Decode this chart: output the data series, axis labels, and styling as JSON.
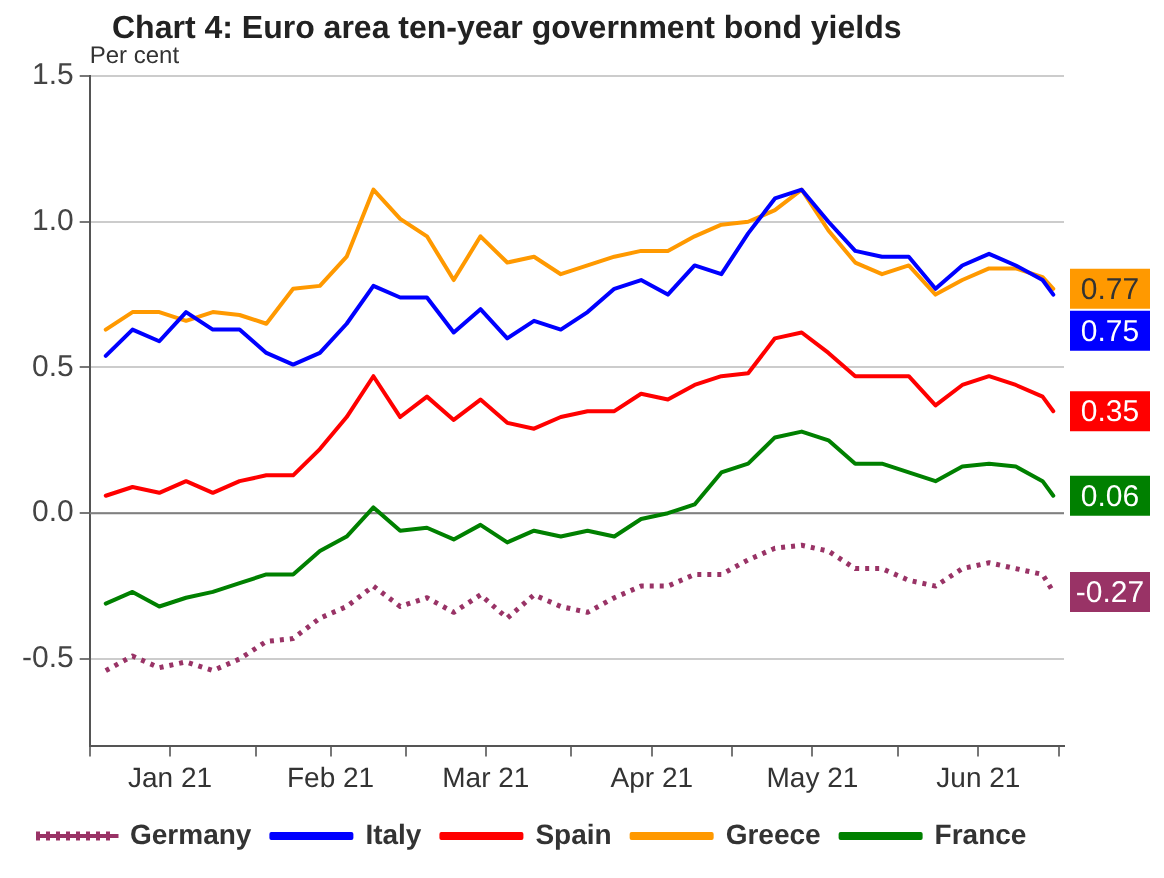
{
  "chart_data": {
    "type": "line",
    "title": "Chart 4: Euro area ten-year government bond yields",
    "ylabel": "Per cent",
    "x": [
      "2021-01-04",
      "2021-01-09",
      "2021-01-14",
      "2021-01-19",
      "2021-01-24",
      "2021-01-29",
      "2021-02-03",
      "2021-02-08",
      "2021-02-13",
      "2021-02-18",
      "2021-02-23",
      "2021-02-28",
      "2021-03-05",
      "2021-03-10",
      "2021-03-15",
      "2021-03-20",
      "2021-03-25",
      "2021-03-30",
      "2021-04-04",
      "2021-04-09",
      "2021-04-14",
      "2021-04-19",
      "2021-04-24",
      "2021-04-29",
      "2021-05-04",
      "2021-05-09",
      "2021-05-14",
      "2021-05-19",
      "2021-05-24",
      "2021-05-29",
      "2021-06-03",
      "2021-06-08",
      "2021-06-13",
      "2021-06-18",
      "2021-06-23",
      "2021-06-28",
      "2021-06-30"
    ],
    "series": [
      {
        "name": "Germany",
        "color": "#993366",
        "line_style": "dotted",
        "values": [
          -0.54,
          -0.49,
          -0.53,
          -0.51,
          -0.54,
          -0.5,
          -0.44,
          -0.43,
          -0.36,
          -0.32,
          -0.25,
          -0.32,
          -0.29,
          -0.34,
          -0.28,
          -0.36,
          -0.28,
          -0.32,
          -0.34,
          -0.29,
          -0.25,
          -0.25,
          -0.21,
          -0.21,
          -0.16,
          -0.12,
          -0.11,
          -0.13,
          -0.19,
          -0.19,
          -0.23,
          -0.25,
          -0.19,
          -0.17,
          -0.19,
          -0.21,
          -0.27
        ],
        "value_labels": [
          null,
          null,
          null,
          null,
          null,
          null,
          null,
          null,
          null,
          null,
          null,
          null,
          null,
          null,
          null,
          null,
          null,
          null,
          null,
          null,
          null,
          null,
          null,
          null,
          null,
          null,
          null,
          null,
          null,
          null,
          null,
          null,
          null,
          null,
          null,
          null,
          "-0.27"
        ]
      },
      {
        "name": "Italy",
        "color": "#0000ff",
        "values": [
          0.54,
          0.63,
          0.59,
          0.69,
          0.63,
          0.63,
          0.55,
          0.51,
          0.55,
          0.65,
          0.78,
          0.74,
          0.74,
          0.62,
          0.7,
          0.6,
          0.66,
          0.63,
          0.69,
          0.77,
          0.8,
          0.75,
          0.85,
          0.82,
          0.96,
          1.08,
          1.11,
          1.0,
          0.9,
          0.88,
          0.88,
          0.77,
          0.85,
          0.89,
          0.85,
          0.8,
          0.75
        ],
        "value_labels": [
          null,
          null,
          null,
          null,
          null,
          null,
          null,
          null,
          null,
          null,
          null,
          null,
          null,
          null,
          null,
          null,
          null,
          null,
          null,
          null,
          null,
          null,
          null,
          null,
          null,
          null,
          null,
          null,
          null,
          null,
          null,
          null,
          null,
          null,
          null,
          null,
          "0.75"
        ]
      },
      {
        "name": "Spain",
        "color": "#ff0000",
        "values": [
          0.06,
          0.09,
          0.07,
          0.11,
          0.07,
          0.11,
          0.13,
          0.13,
          0.22,
          0.33,
          0.47,
          0.33,
          0.4,
          0.32,
          0.39,
          0.31,
          0.29,
          0.33,
          0.35,
          0.35,
          0.41,
          0.39,
          0.44,
          0.47,
          0.48,
          0.6,
          0.62,
          0.55,
          0.47,
          0.47,
          0.47,
          0.37,
          0.44,
          0.47,
          0.44,
          0.4,
          0.35
        ],
        "value_labels": [
          null,
          null,
          null,
          null,
          null,
          null,
          null,
          null,
          null,
          null,
          null,
          null,
          null,
          null,
          null,
          null,
          null,
          null,
          null,
          null,
          null,
          null,
          null,
          null,
          null,
          null,
          null,
          null,
          null,
          null,
          null,
          null,
          null,
          null,
          null,
          null,
          "0.35"
        ]
      },
      {
        "name": "Greece",
        "color": "#ff9900",
        "values": [
          0.63,
          0.69,
          0.69,
          0.66,
          0.69,
          0.68,
          0.65,
          0.77,
          0.78,
          0.88,
          1.11,
          1.01,
          0.95,
          0.8,
          0.95,
          0.86,
          0.88,
          0.82,
          0.85,
          0.88,
          0.9,
          0.9,
          0.95,
          0.99,
          1.0,
          1.04,
          1.11,
          0.97,
          0.86,
          0.82,
          0.85,
          0.75,
          0.8,
          0.84,
          0.84,
          0.81,
          0.77
        ],
        "value_labels": [
          null,
          null,
          null,
          null,
          null,
          null,
          null,
          null,
          null,
          null,
          null,
          null,
          null,
          null,
          null,
          null,
          null,
          null,
          null,
          null,
          null,
          null,
          null,
          null,
          null,
          null,
          null,
          null,
          null,
          null,
          null,
          null,
          null,
          null,
          null,
          null,
          "0.77"
        ]
      },
      {
        "name": "France",
        "color": "#008000",
        "values": [
          -0.31,
          -0.27,
          -0.32,
          -0.29,
          -0.27,
          -0.24,
          -0.21,
          -0.21,
          -0.13,
          -0.08,
          0.02,
          -0.06,
          -0.05,
          -0.09,
          -0.04,
          -0.1,
          -0.06,
          -0.08,
          -0.06,
          -0.08,
          -0.02,
          0.0,
          0.03,
          0.14,
          0.17,
          0.26,
          0.28,
          0.25,
          0.17,
          0.17,
          0.14,
          0.11,
          0.16,
          0.17,
          0.16,
          0.11,
          0.06
        ],
        "value_labels": [
          null,
          null,
          null,
          null,
          null,
          null,
          null,
          null,
          null,
          null,
          null,
          null,
          null,
          null,
          null,
          null,
          null,
          null,
          null,
          null,
          null,
          null,
          null,
          null,
          null,
          null,
          null,
          null,
          null,
          null,
          null,
          null,
          null,
          null,
          null,
          null,
          "0.06"
        ]
      }
    ],
    "xlim": [
      "2021-01-01",
      "2021-07-02"
    ],
    "xticks": [
      {
        "value": "2021-01-01",
        "label": null
      },
      {
        "value": "2021-01-16",
        "label": "Jan 21"
      },
      {
        "value": "2021-02-01",
        "label": null
      },
      {
        "value": "2021-02-15",
        "label": "Feb 21"
      },
      {
        "value": "2021-03-01",
        "label": null
      },
      {
        "value": "2021-03-16",
        "label": "Mar 21"
      },
      {
        "value": "2021-04-01",
        "label": null
      },
      {
        "value": "2021-04-16",
        "label": "Apr 21"
      },
      {
        "value": "2021-05-01",
        "label": null
      },
      {
        "value": "2021-05-16",
        "label": "May 21"
      },
      {
        "value": "2021-06-01",
        "label": null
      },
      {
        "value": "2021-06-16",
        "label": "Jun 21"
      },
      {
        "value": "2021-07-01",
        "label": null
      }
    ],
    "ylim": [
      -0.8,
      1.5
    ],
    "yticks": [
      {
        "value": -0.5,
        "label": "-0.5"
      },
      {
        "value": 0,
        "label": "0.0"
      },
      {
        "value": 0.5,
        "label": "0.5"
      },
      {
        "value": 1,
        "label": "1.0"
      },
      {
        "value": 1.5,
        "label": "1.5"
      }
    ],
    "ref_lines": [
      {
        "axis": "y",
        "value": 0,
        "color": "#808080"
      }
    ],
    "grid": "y",
    "legend": "bottom",
    "marker": "none",
    "line_style": "solid"
  }
}
